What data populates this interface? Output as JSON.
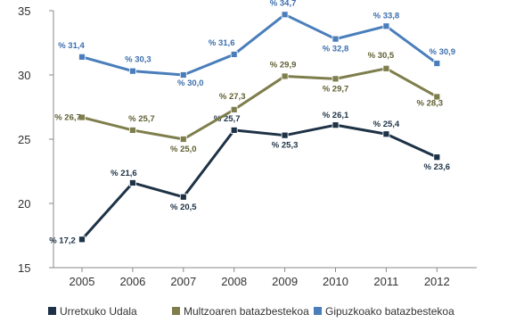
{
  "chart_data": {
    "type": "line",
    "title": "",
    "xlabel": "",
    "ylabel": "",
    "ylim": [
      15,
      35
    ],
    "yticks": [
      15,
      20,
      25,
      30,
      35
    ],
    "categories": [
      "2005",
      "2006",
      "2007",
      "2008",
      "2009",
      "2010",
      "2011",
      "2012"
    ],
    "grid": false,
    "legend_position": "bottom",
    "series": [
      {
        "name": "Urretxuko Udala",
        "color": "#1e3246",
        "label_color": "#1e3246",
        "values": [
          17.2,
          21.6,
          20.5,
          25.7,
          25.3,
          26.1,
          25.4,
          23.6
        ],
        "labels": [
          "% 17,2",
          "% 21,6",
          "% 20,5",
          "% 25,7",
          "% 25,3",
          "% 26,1",
          "% 25,4",
          "% 23,6"
        ]
      },
      {
        "name": "Multzoaren batazbestekoa",
        "color": "#7e7e4c",
        "label_color": "#5f5f33",
        "values": [
          26.7,
          25.7,
          25.0,
          27.3,
          29.9,
          29.7,
          30.5,
          28.3
        ],
        "labels": [
          "% 26,7",
          "% 25,7",
          "% 25,0",
          "% 27,3",
          "% 29,9",
          "% 29,7",
          "% 30,5",
          "% 28,3"
        ]
      },
      {
        "name": "Gipuzkoako batazbestekoa",
        "color": "#4a7ebb",
        "label_color": "#3c6fad",
        "values": [
          31.4,
          30.3,
          30.0,
          31.6,
          34.7,
          32.8,
          33.8,
          30.9
        ],
        "labels": [
          "% 31,4",
          "% 30,3",
          "% 30,0",
          "% 31,6",
          "% 34,7",
          "% 32,8",
          "% 33,8",
          "% 30,9"
        ]
      }
    ]
  }
}
